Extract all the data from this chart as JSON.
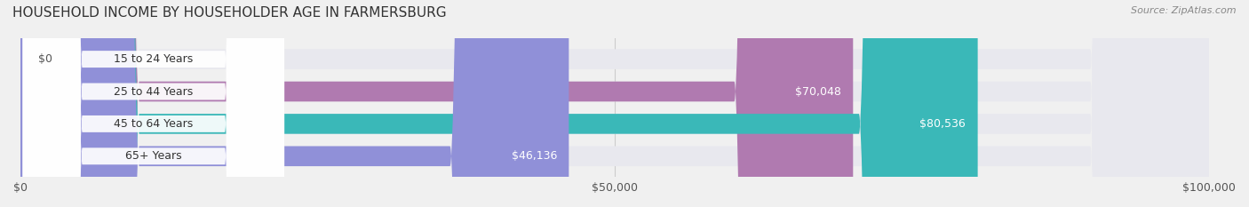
{
  "title": "HOUSEHOLD INCOME BY HOUSEHOLDER AGE IN FARMERSBURG",
  "source": "Source: ZipAtlas.com",
  "categories": [
    "15 to 24 Years",
    "25 to 44 Years",
    "45 to 64 Years",
    "65+ Years"
  ],
  "values": [
    0,
    70048,
    80536,
    46136
  ],
  "bar_colors": [
    "#a8b8d8",
    "#b07ab0",
    "#3ab8b8",
    "#9090d8"
  ],
  "label_colors": [
    "#555555",
    "#ffffff",
    "#ffffff",
    "#555555"
  ],
  "xlim": [
    0,
    100000
  ],
  "xticks": [
    0,
    50000,
    100000
  ],
  "xtick_labels": [
    "$0",
    "$50,000",
    "$100,000"
  ],
  "background_color": "#f0f0f0",
  "bar_background_color": "#e8e8ee",
  "bar_height": 0.62,
  "figsize": [
    14.06,
    2.33
  ],
  "dpi": 100
}
